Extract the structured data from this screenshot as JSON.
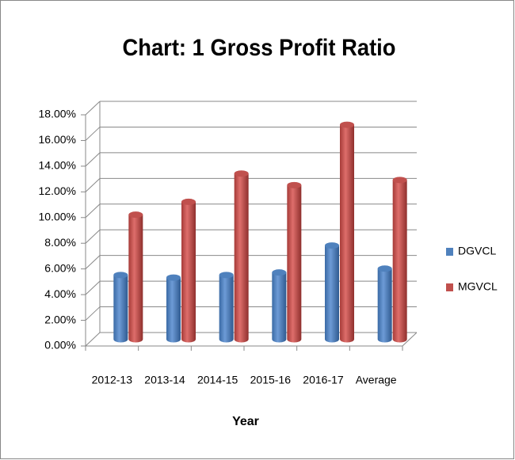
{
  "chart_data": {
    "type": "bar3d",
    "title": "Chart: 1 Gross Profit Ratio",
    "x_label": "Year",
    "categories": [
      "2012-13",
      "2013-14",
      "2014-15",
      "2015-16",
      "2016-17",
      "Average"
    ],
    "series": [
      {
        "name": "DGVCL",
        "color": "#4f81bd",
        "values": [
          5.0,
          4.8,
          5.0,
          5.2,
          7.3,
          5.5
        ]
      },
      {
        "name": "MGVCL",
        "color": "#c0504d",
        "values": [
          9.7,
          10.7,
          12.9,
          12.0,
          16.7,
          12.4
        ]
      }
    ],
    "ylim": [
      0,
      18
    ],
    "yticks": [
      {
        "value": 0,
        "label": "0.00%"
      },
      {
        "value": 2,
        "label": "2.00%"
      },
      {
        "value": 4,
        "label": "4.00%"
      },
      {
        "value": 6,
        "label": "6.00%"
      },
      {
        "value": 8,
        "label": "8.00%"
      },
      {
        "value": 10,
        "label": "10.00%"
      },
      {
        "value": 12,
        "label": "12.00%"
      },
      {
        "value": 14,
        "label": "14.00%"
      },
      {
        "value": 16,
        "label": "16.00%"
      },
      {
        "value": 18,
        "label": "18.00%"
      }
    ],
    "grid": true,
    "legend": "right"
  }
}
